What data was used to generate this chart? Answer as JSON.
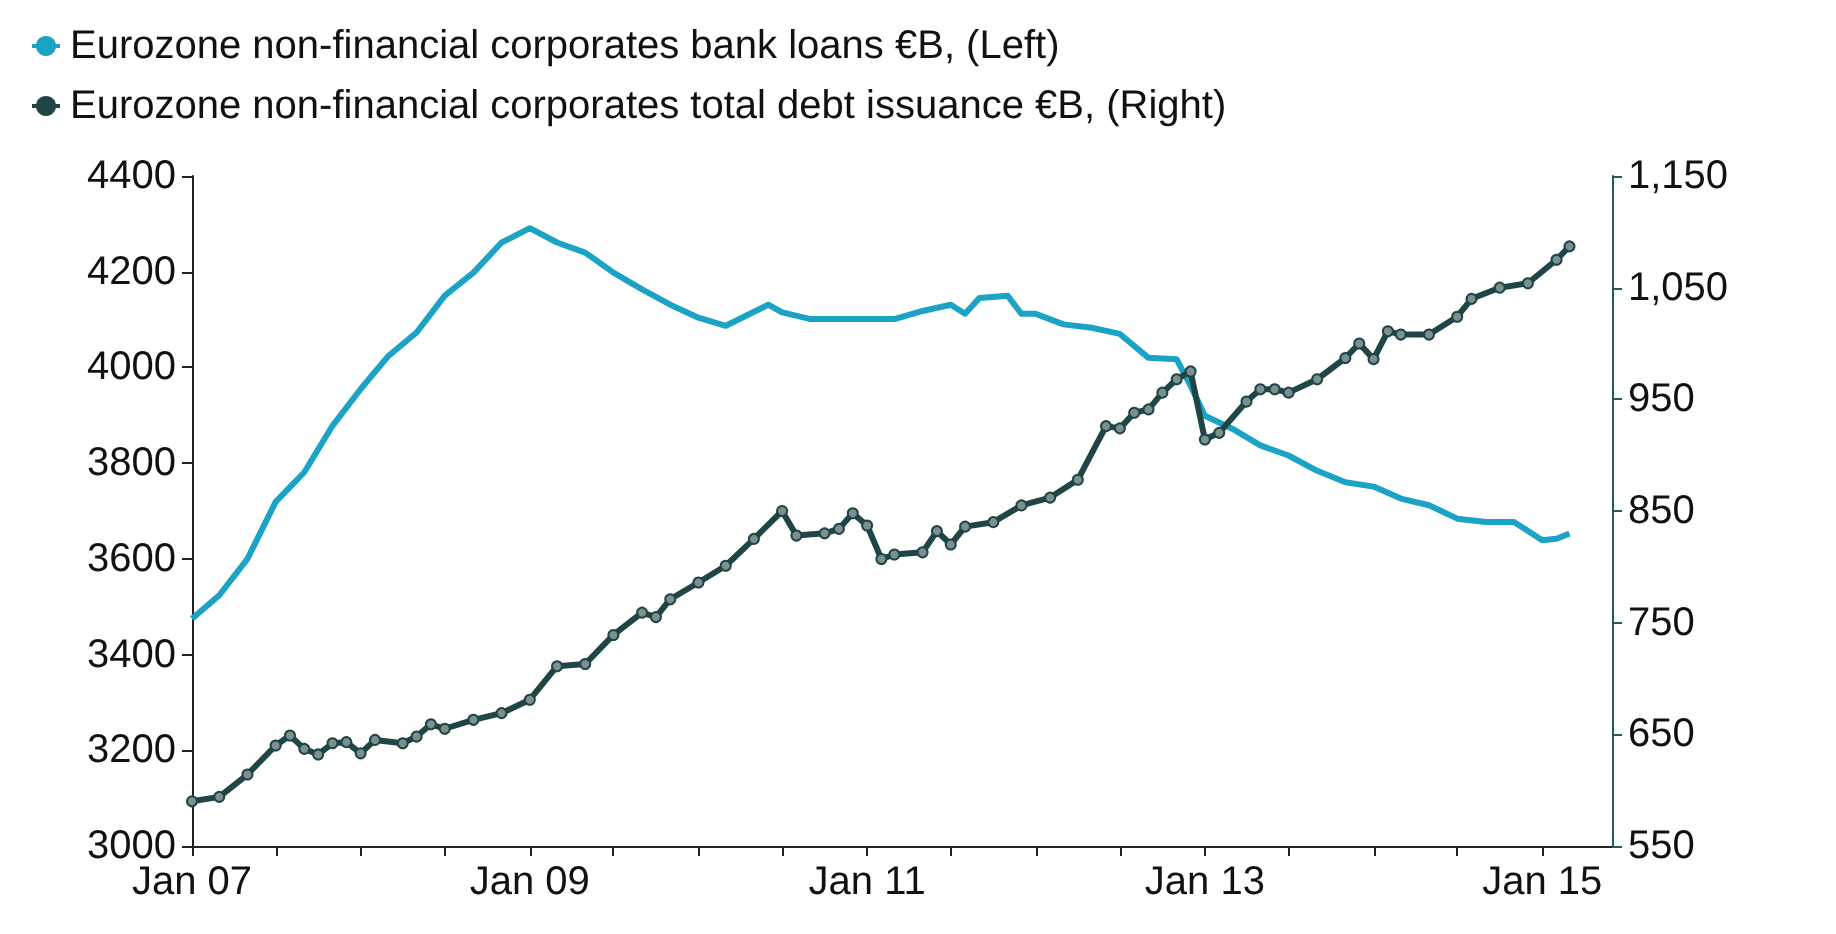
{
  "chart_data": {
    "type": "line",
    "legend": "top left",
    "xlim": [
      "2007-01",
      "2015-06"
    ],
    "xticks": [
      {
        "value": "2007-01",
        "label": "Jan 07"
      },
      {
        "value": "2007-07",
        "label": null
      },
      {
        "value": "2008-01",
        "label": null
      },
      {
        "value": "2008-07",
        "label": null
      },
      {
        "value": "2009-01",
        "label": "Jan 09"
      },
      {
        "value": "2009-07",
        "label": null
      },
      {
        "value": "2010-01",
        "label": null
      },
      {
        "value": "2010-07",
        "label": null
      },
      {
        "value": "2011-01",
        "label": "Jan 11"
      },
      {
        "value": "2011-07",
        "label": null
      },
      {
        "value": "2012-01",
        "label": null
      },
      {
        "value": "2012-07",
        "label": null
      },
      {
        "value": "2013-01",
        "label": "Jan 13"
      },
      {
        "value": "2013-07",
        "label": null
      },
      {
        "value": "2014-01",
        "label": null
      },
      {
        "value": "2014-07",
        "label": null
      },
      {
        "value": "2015-01",
        "label": "Jan 15"
      }
    ],
    "ylim": [
      3000,
      4400
    ],
    "yticks": [
      3000,
      3200,
      3400,
      3600,
      3800,
      4000,
      4200,
      4400
    ],
    "y2lim": [
      550,
      1150
    ],
    "y2ticks": [
      {
        "value": 550,
        "label": "550"
      },
      {
        "value": 650,
        "label": "650"
      },
      {
        "value": 750,
        "label": "750"
      },
      {
        "value": 850,
        "label": "850"
      },
      {
        "value": 950,
        "label": "950"
      },
      {
        "value": 1050,
        "label": "1,050"
      },
      {
        "value": 1150,
        "label": "1,150"
      }
    ],
    "series": [
      {
        "name": "Eurozone non-financial corporates bank loans €B, (Left)",
        "color": "#1ba3c6",
        "marker": "none",
        "x": [
          "2007-01",
          "2007-03",
          "2007-05",
          "2007-07",
          "2007-09",
          "2007-11",
          "2008-01",
          "2008-03",
          "2008-05",
          "2008-07",
          "2008-09",
          "2008-11",
          "2009-01",
          "2009-03",
          "2009-05",
          "2009-07",
          "2009-09",
          "2009-11",
          "2010-01",
          "2010-03",
          "2010-06",
          "2010-07",
          "2010-09",
          "2010-11",
          "2011-01",
          "2011-03",
          "2011-05",
          "2011-07",
          "2011-08",
          "2011-09",
          "2011-11",
          "2011-12",
          "2012-01",
          "2012-03",
          "2012-05",
          "2012-07",
          "2012-09",
          "2012-11",
          "2012-12",
          "2013-01",
          "2013-03",
          "2013-05",
          "2013-07",
          "2013-09",
          "2013-11",
          "2014-01",
          "2014-03",
          "2014-05",
          "2014-07",
          "2014-09",
          "2014-11",
          "2015-01",
          "2015-02",
          "2015-03"
        ],
        "values": [
          3475,
          3524,
          3600,
          3719,
          3781,
          3878,
          3955,
          4024,
          4073,
          4150,
          4198,
          4261,
          4291,
          4261,
          4240,
          4198,
          4163,
          4131,
          4104,
          4087,
          4131,
          4115,
          4101,
          4101,
          4101,
          4101,
          4118,
          4131,
          4112,
          4145,
          4150,
          4112,
          4112,
          4090,
          4083,
          4070,
          4020,
          4017,
          3962,
          3899,
          3872,
          3837,
          3816,
          3784,
          3760,
          3751,
          3726,
          3712,
          3684,
          3677,
          3677,
          3639,
          3642,
          3653
        ]
      },
      {
        "name": "Eurozone non-financial corporates total debt issuance €B, (Right)",
        "color": "#1f4547",
        "marker": "circle",
        "axis": "y2",
        "x": [
          "2007-01",
          "2007-03",
          "2007-05",
          "2007-07",
          "2007-08",
          "2007-09",
          "2007-10",
          "2007-11",
          "2007-12",
          "2008-01",
          "2008-02",
          "2008-04",
          "2008-05",
          "2008-06",
          "2008-07",
          "2008-09",
          "2008-11",
          "2009-01",
          "2009-03",
          "2009-05",
          "2009-07",
          "2009-09",
          "2009-10",
          "2009-11",
          "2010-01",
          "2010-03",
          "2010-05",
          "2010-07",
          "2010-08",
          "2010-10",
          "2010-11",
          "2010-12",
          "2011-01",
          "2011-02",
          "2011-03",
          "2011-05",
          "2011-06",
          "2011-07",
          "2011-08",
          "2011-10",
          "2011-12",
          "2012-02",
          "2012-04",
          "2012-06",
          "2012-07",
          "2012-08",
          "2012-09",
          "2012-10",
          "2012-11",
          "2012-12",
          "2013-01",
          "2013-02",
          "2013-04",
          "2013-05",
          "2013-06",
          "2013-07",
          "2013-09",
          "2013-11",
          "2013-12",
          "2014-01",
          "2014-02",
          "2014-03",
          "2014-05",
          "2014-07",
          "2014-08",
          "2014-10",
          "2014-12",
          "2015-02",
          "2015-03"
        ],
        "values": [
          590,
          594,
          614,
          640,
          649,
          637,
          632,
          642,
          643,
          633,
          645,
          642,
          648,
          659,
          655,
          663,
          669,
          681,
          711,
          713,
          739,
          759,
          755,
          771,
          786,
          801,
          825,
          850,
          828,
          830,
          834,
          848,
          837,
          807,
          811,
          813,
          832,
          820,
          836,
          840,
          855,
          862,
          878,
          926,
          924,
          938,
          941,
          956,
          968,
          975,
          914,
          920,
          948,
          959,
          959,
          956,
          968,
          987,
          1000,
          986,
          1011,
          1008,
          1008,
          1024,
          1040,
          1050,
          1054,
          1075,
          1087
        ]
      }
    ]
  }
}
